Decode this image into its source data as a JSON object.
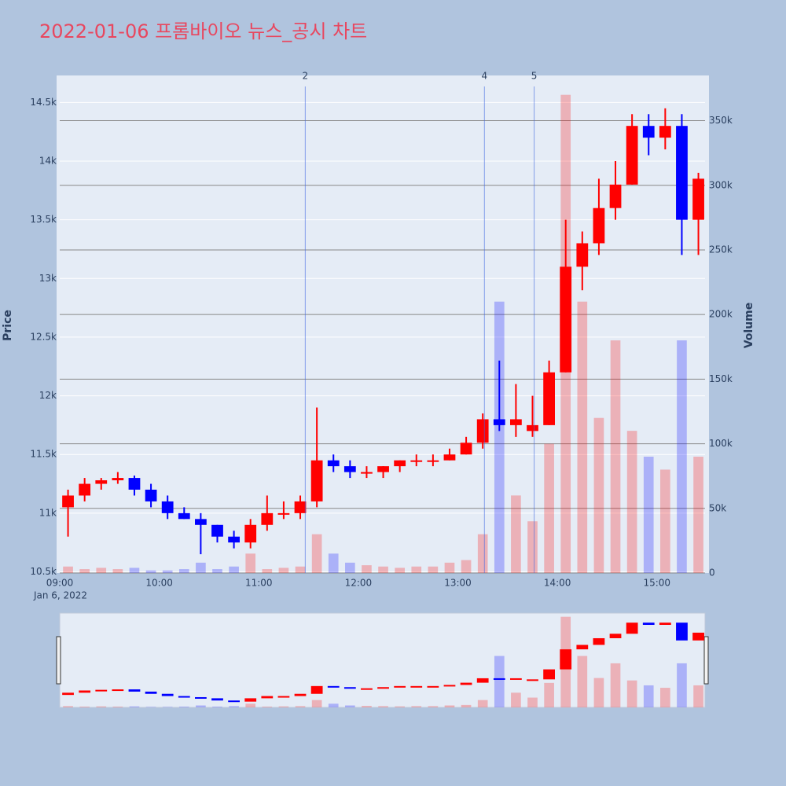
{
  "chart_data": {
    "type": "candlestick",
    "title": "2022-01-06 프롬바이오 뉴스_공시 차트",
    "y_label": "Price",
    "y2_label": "Volume",
    "x_sublabel": "Jan 6, 2022",
    "x": [
      "09:00",
      "09:10",
      "09:20",
      "09:30",
      "09:40",
      "09:50",
      "10:00",
      "10:10",
      "10:20",
      "10:30",
      "10:40",
      "10:50",
      "11:00",
      "11:10",
      "11:20",
      "11:30",
      "11:40",
      "11:50",
      "12:00",
      "12:10",
      "12:20",
      "12:30",
      "12:40",
      "12:50",
      "13:00",
      "13:10",
      "13:20",
      "13:30",
      "13:40",
      "13:50",
      "14:00",
      "14:10",
      "14:20",
      "14:30",
      "14:40",
      "14:50",
      "15:00",
      "15:10",
      "15:20"
    ],
    "open": [
      11050,
      11150,
      11250,
      11280,
      11300,
      11200,
      11100,
      11000,
      10950,
      10900,
      10800,
      10750,
      10900,
      11000,
      11000,
      11100,
      11450,
      11400,
      11350,
      11350,
      11400,
      11450,
      11450,
      11450,
      11500,
      11600,
      11800,
      11750,
      11700,
      11750,
      12200,
      13100,
      13300,
      13600,
      13800,
      14300,
      14200,
      14300,
      13500
    ],
    "high": [
      11200,
      11300,
      11300,
      11350,
      11320,
      11250,
      11150,
      11050,
      11000,
      10900,
      10850,
      10950,
      11150,
      11100,
      11150,
      11900,
      11500,
      11450,
      11400,
      11400,
      11450,
      11500,
      11500,
      11550,
      11650,
      11850,
      12300,
      12100,
      12000,
      12300,
      13500,
      13400,
      13850,
      14000,
      14400,
      14400,
      14450,
      14400,
      13900
    ],
    "low": [
      10800,
      11100,
      11200,
      11250,
      11150,
      11050,
      10950,
      10950,
      10650,
      10750,
      10700,
      10700,
      10850,
      10950,
      10950,
      11050,
      11350,
      11300,
      11300,
      11300,
      11350,
      11400,
      11400,
      11450,
      11500,
      11550,
      11700,
      11650,
      11650,
      11750,
      12200,
      12900,
      13200,
      13500,
      13800,
      14050,
      14100,
      13200,
      13200
    ],
    "close": [
      11150,
      11250,
      11280,
      11300,
      11200,
      11100,
      11000,
      10950,
      10900,
      10800,
      10750,
      10900,
      11000,
      11000,
      11100,
      11450,
      11400,
      11350,
      11350,
      11400,
      11450,
      11450,
      11450,
      11500,
      11600,
      11800,
      11750,
      11800,
      11750,
      12200,
      13100,
      13300,
      13600,
      13800,
      14300,
      14200,
      14300,
      13500,
      13850
    ],
    "volume": [
      5000,
      3000,
      4000,
      3000,
      4000,
      2000,
      2000,
      3000,
      8000,
      3000,
      5000,
      15000,
      3000,
      4000,
      5000,
      30000,
      15000,
      8000,
      6000,
      5000,
      4000,
      5000,
      5000,
      8000,
      10000,
      30000,
      210000,
      60000,
      40000,
      100000,
      370000,
      210000,
      120000,
      180000,
      110000,
      90000,
      80000,
      180000,
      90000
    ],
    "increasing_color": "#ff0000",
    "decreasing_color": "#0000ff",
    "xlim": [
      "09:00",
      "15:29"
    ],
    "xticks": [
      "09:00",
      "10:00",
      "11:00",
      "12:00",
      "13:00",
      "14:00",
      "15:00"
    ],
    "ylim": [
      10490,
      14730
    ],
    "yticks": [
      {
        "value": 10500,
        "label": "10.5k"
      },
      {
        "value": 11000,
        "label": "11k"
      },
      {
        "value": 11500,
        "label": "11.5k"
      },
      {
        "value": 12000,
        "label": "12k"
      },
      {
        "value": 12500,
        "label": "12.5k"
      },
      {
        "value": 13000,
        "label": "13k"
      },
      {
        "value": 13500,
        "label": "13.5k"
      },
      {
        "value": 14000,
        "label": "14k"
      },
      {
        "value": 14500,
        "label": "14.5k"
      }
    ],
    "y2lim": [
      0,
      385000
    ],
    "y2ticks": [
      0,
      {
        "value": 50000,
        "label": "50k"
      },
      {
        "value": 100000,
        "label": "100k"
      },
      {
        "value": 150000,
        "label": "150k"
      },
      {
        "value": 200000,
        "label": "200k"
      },
      {
        "value": 250000,
        "label": "250k"
      },
      {
        "value": 300000,
        "label": "300k"
      },
      {
        "value": 350000,
        "label": "350k"
      }
    ],
    "news": [
      {
        "label": "2",
        "x": "11:28"
      },
      {
        "label": "4",
        "x": "13:16"
      },
      {
        "label": "5",
        "x": "13:46"
      }
    ],
    "grid": true
  }
}
